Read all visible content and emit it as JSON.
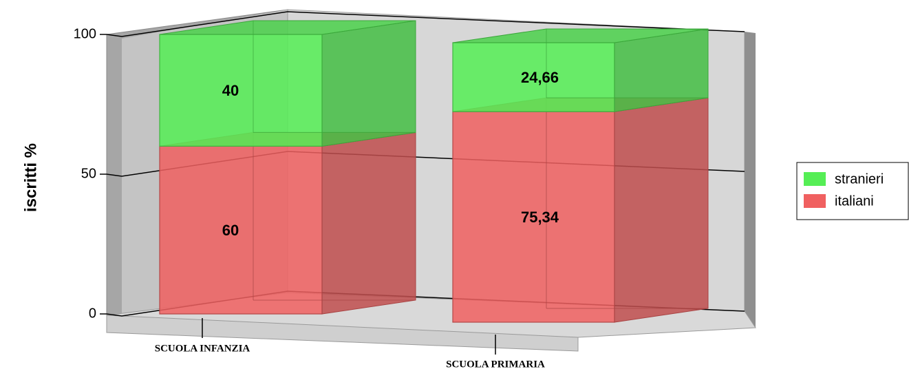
{
  "chart_data": {
    "type": "bar",
    "stacked": true,
    "percent_stacked": true,
    "style_3d": true,
    "categories": [
      "SCUOLA INFANZIA",
      "SCUOLA PRIMARIA"
    ],
    "series": [
      {
        "name": "italiani",
        "values": [
          60,
          75.34
        ],
        "labels": [
          "60",
          "75,34"
        ],
        "color": "#f06060"
      },
      {
        "name": "stranieri",
        "values": [
          40,
          24.66
        ],
        "labels": [
          "40",
          "24,66"
        ],
        "color": "#55ee55"
      }
    ],
    "ylabel": "iscritti %",
    "ylim": [
      0,
      100
    ],
    "yticks": [
      "0",
      "50",
      "100"
    ],
    "grid": true,
    "legend": {
      "position": "right",
      "order": [
        "stranieri",
        "italiani"
      ]
    }
  }
}
